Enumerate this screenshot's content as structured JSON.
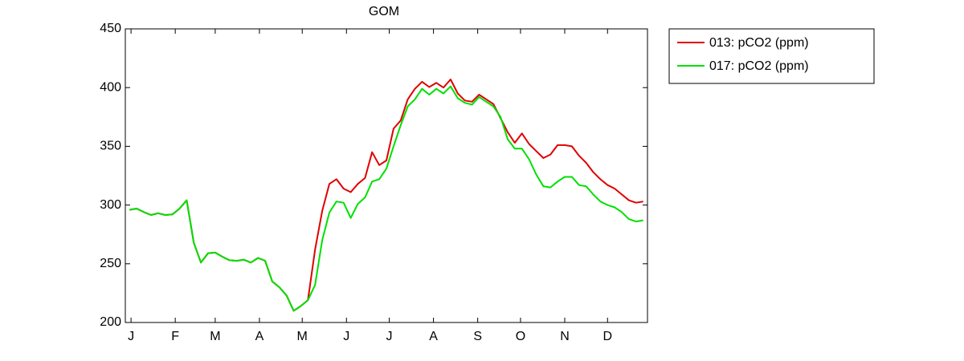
{
  "chart_data": {
    "type": "line",
    "title": "GOM",
    "x": [
      0,
      5,
      10,
      15,
      20,
      25,
      30,
      35,
      40,
      45,
      50,
      55,
      60,
      65,
      70,
      75,
      80,
      85,
      90,
      95,
      100,
      105,
      110,
      115,
      120,
      125,
      130,
      135,
      140,
      145,
      150,
      155,
      160,
      165,
      170,
      175,
      180,
      185,
      190,
      195,
      200,
      205,
      210,
      215,
      220,
      225,
      230,
      235,
      240,
      245,
      250,
      255,
      260,
      265,
      270,
      275,
      280,
      285,
      290,
      295,
      300,
      305,
      310,
      315,
      320,
      325,
      330,
      335,
      340,
      345,
      350,
      355,
      360
    ],
    "series": [
      {
        "name": "013: pCO2 (ppm)",
        "color": "#e00000",
        "values": [
          296,
          297,
          294,
          291.5,
          293,
          291.5,
          292,
          297,
          304,
          268,
          251,
          259,
          259.5,
          256,
          253,
          252.5,
          253.5,
          251,
          255,
          252.6,
          235,
          230,
          223,
          210,
          214,
          219,
          262,
          295,
          318,
          322,
          314,
          311,
          318,
          323,
          345,
          334,
          338,
          365,
          372,
          390,
          399,
          405,
          400.5,
          404,
          400,
          407,
          395,
          389,
          388,
          394,
          390,
          386,
          374,
          362,
          353,
          361,
          352,
          346,
          340,
          343,
          351,
          351,
          350,
          342,
          336,
          328,
          322,
          317,
          314,
          309,
          304,
          302,
          303
        ]
      },
      {
        "name": "017: pCO2 (ppm)",
        "color": "#00e000",
        "values": [
          296,
          297,
          294,
          291.5,
          293,
          291.5,
          292,
          297,
          304,
          268,
          251,
          259,
          259.5,
          256,
          253,
          252.5,
          253.5,
          251,
          255,
          252.6,
          235,
          230,
          223,
          210,
          214,
          219,
          232,
          270,
          293.6,
          303,
          302,
          289,
          301,
          306.5,
          320,
          322,
          331,
          350,
          368,
          384,
          390,
          399,
          394,
          399,
          395,
          401,
          391,
          387,
          385.5,
          392,
          388,
          384,
          375,
          356,
          348,
          348,
          339,
          326,
          316,
          315,
          320,
          324,
          324,
          317,
          316,
          309,
          303,
          300,
          298,
          294,
          288,
          286,
          287
        ]
      }
    ],
    "xlim": [
      -3,
      363
    ],
    "xticks": [
      {
        "value": 1,
        "label": "J"
      },
      {
        "value": 32,
        "label": "F"
      },
      {
        "value": 60,
        "label": "M"
      },
      {
        "value": 91,
        "label": "A"
      },
      {
        "value": 121,
        "label": "M"
      },
      {
        "value": 152,
        "label": "J"
      },
      {
        "value": 182,
        "label": "J"
      },
      {
        "value": 213,
        "label": "A"
      },
      {
        "value": 244,
        "label": "S"
      },
      {
        "value": 274,
        "label": "O"
      },
      {
        "value": 305,
        "label": "N"
      },
      {
        "value": 335,
        "label": "D"
      }
    ],
    "ylim": [
      200,
      450
    ],
    "yticks": [
      200,
      250,
      300,
      350,
      400,
      450
    ],
    "legend": "outside-top-right"
  }
}
